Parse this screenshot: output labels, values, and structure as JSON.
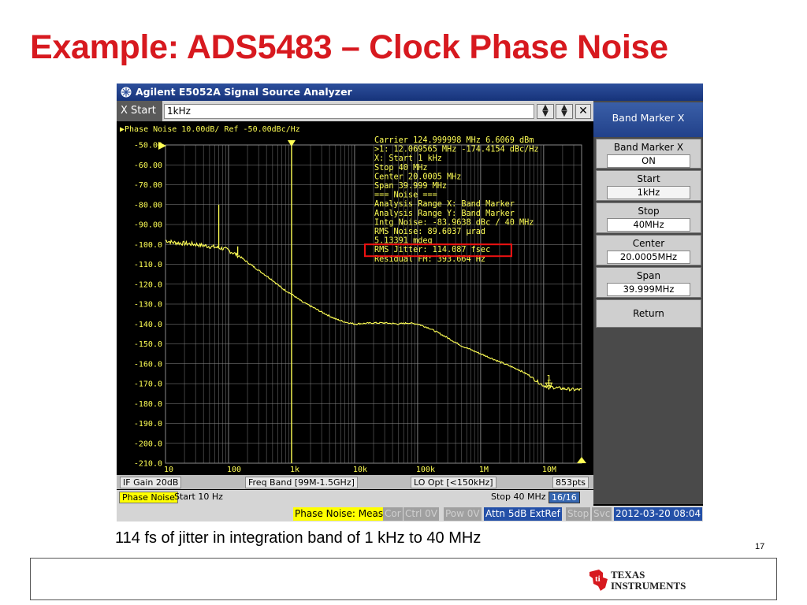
{
  "slide": {
    "title": "Example: ADS5483 – Clock Phase Noise",
    "caption": "114 fs of jitter in integration band of 1 kHz to 40 MHz",
    "page_number": "17",
    "logo_text": [
      "Texas",
      "Instruments"
    ]
  },
  "window": {
    "title": "Agilent E5052A Signal Source Analyzer",
    "entry": {
      "label": "X Start",
      "value": "1kHz"
    },
    "softkeys": {
      "header": "Band Marker X",
      "items": [
        {
          "label": "Band Marker X",
          "value": "ON"
        },
        {
          "label": "Start",
          "value": "1kHz"
        },
        {
          "label": "Stop",
          "value": "40MHz"
        },
        {
          "label": "Center",
          "value": "20.0005MHz"
        },
        {
          "label": "Span",
          "value": "39.999MHz"
        },
        {
          "label": "Return",
          "value": ""
        }
      ]
    }
  },
  "plot": {
    "header": "▶Phase Noise 10.00dB/ Ref -50.00dBc/Hz",
    "y_tick_labels": [
      "-50.00",
      "-60.00",
      "-70.00",
      "-80.00",
      "-90.00",
      "-100.0",
      "-110.0",
      "-120.0",
      "-130.0",
      "-140.0",
      "-150.0",
      "-160.0",
      "-170.0",
      "-180.0",
      "-190.0",
      "-200.0",
      "-210.0"
    ],
    "x_tick_labels": [
      "10",
      "100",
      "1k",
      "10k",
      "100k",
      "1M",
      "10M"
    ],
    "marker_label": "1",
    "readout_lines": [
      "Carrier 124.999998 MHz     6.6069 dBm",
      ">1:  12.069565 MHz  -174.4154 dBc/Hz",
      "  X: Start 1 kHz",
      "      Stop 40 MHz",
      "    Center 20.0005 MHz",
      "      Span 39.999 MHz",
      "=== Noise ===",
      "Analysis Range X: Band Marker",
      "Analysis Range Y: Band Marker",
      "Intg Noise: -83.9638 dBc / 40 MHz",
      " RMS Noise: 89.6037 µrad",
      "            5.13391 mdeg",
      "RMS Jitter: 114.087 fsec",
      "Residual FM: 393.664 Hz"
    ],
    "highlight_line_index": 12,
    "colors": {
      "trace": "#ffff55",
      "grid": "#8a8a8a",
      "text": "#ffff55",
      "highlight": "#ee1111"
    }
  },
  "chart_data": {
    "type": "line",
    "title": "Phase Noise 10.00dB/ Ref -50.00dBc/Hz",
    "xlabel": "",
    "ylabel": "",
    "x_scale": "log",
    "xlim": [
      10,
      40000000
    ],
    "ylim": [
      -210,
      -50
    ],
    "grid": true,
    "series": [
      {
        "x": [
          10,
          13,
          20,
          30,
          50,
          80,
          100,
          150,
          200,
          300,
          500,
          700,
          1000,
          1500,
          2000,
          3000,
          5000,
          7000,
          10000,
          20000,
          30000,
          50000,
          70000,
          100000,
          150000,
          200000,
          300000,
          500000,
          1000000,
          2000000,
          4000000,
          6000000,
          8000000,
          10000000,
          15000000,
          20000000,
          30000000,
          40000000
        ],
        "y": [
          -98,
          -99,
          -99.5,
          -100,
          -101,
          -102,
          -103,
          -106,
          -109,
          -113,
          -118,
          -122,
          -125,
          -129,
          -131,
          -134,
          -137.5,
          -139,
          -140,
          -139.5,
          -139.5,
          -140,
          -139.5,
          -140,
          -142,
          -144,
          -147,
          -151,
          -155,
          -159,
          -163,
          -166,
          -169,
          -171,
          -172,
          -172.5,
          -173,
          -173
        ]
      }
    ],
    "spurs": [
      {
        "x": 70,
        "y": -80
      },
      {
        "x": 140,
        "y": -101
      },
      {
        "x": 12069565,
        "y": -174.4154
      }
    ],
    "marker": {
      "label": "1",
      "x": 12069565,
      "y": -174.4154
    },
    "band_marker_x": [
      1000,
      40000000
    ]
  },
  "status": {
    "if_gain": "IF Gain 20dB",
    "freq_band": "Freq Band [99M-1.5GHz]",
    "lo_opt": "LO Opt [<150kHz]",
    "points": "853pts",
    "phase_noise_tag": "Phase Noise",
    "start": "Start 10 Hz",
    "stop": "Stop 40 MHz",
    "count": "16/16"
  },
  "bottom": {
    "meas": "Phase Noise: Meas",
    "cor": "Cor",
    "ctrl": "Ctrl  0V",
    "pow": "Pow  0V",
    "attn": "Attn 5dB",
    "extref": "ExtRef",
    "stop": "Stop",
    "svc": "Svc",
    "datetime": "2012-03-20 08:04"
  }
}
